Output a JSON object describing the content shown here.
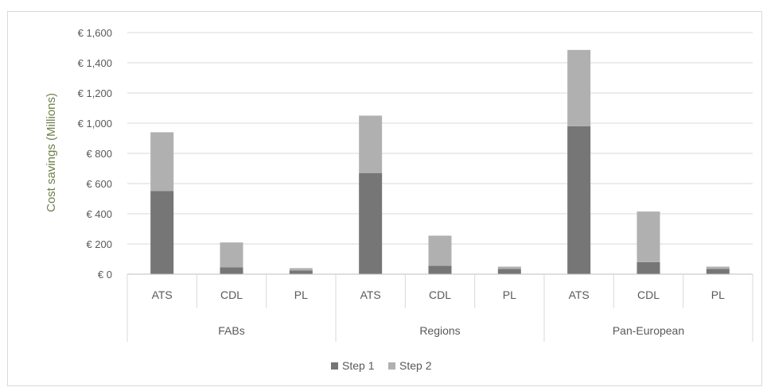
{
  "chart_data": {
    "type": "bar",
    "stacked": true,
    "ylabel": "Cost savings (Millions)",
    "ylim": [
      0,
      1600
    ],
    "yticks": [
      "€ 0",
      "€ 200",
      "€ 400",
      "€ 600",
      "€ 800",
      "€ 1,000",
      "€ 1,200",
      "€ 1,400",
      "€ 1,600"
    ],
    "grid": true,
    "legend_position": "bottom",
    "groups": [
      {
        "label": "FABs",
        "categories": [
          "ATS",
          "CDL",
          "PL"
        ]
      },
      {
        "label": "Regions",
        "categories": [
          "ATS",
          "CDL",
          "PL"
        ]
      },
      {
        "label": "Pan-European",
        "categories": [
          "ATS",
          "CDL",
          "PL"
        ]
      }
    ],
    "series": [
      {
        "name": "Step 1",
        "color": "#767676",
        "values": [
          550,
          45,
          25,
          670,
          55,
          35,
          980,
          80,
          35
        ]
      },
      {
        "name": "Step 2",
        "color": "#b0b0b0",
        "values": [
          390,
          165,
          15,
          380,
          200,
          15,
          505,
          335,
          15
        ]
      }
    ]
  }
}
